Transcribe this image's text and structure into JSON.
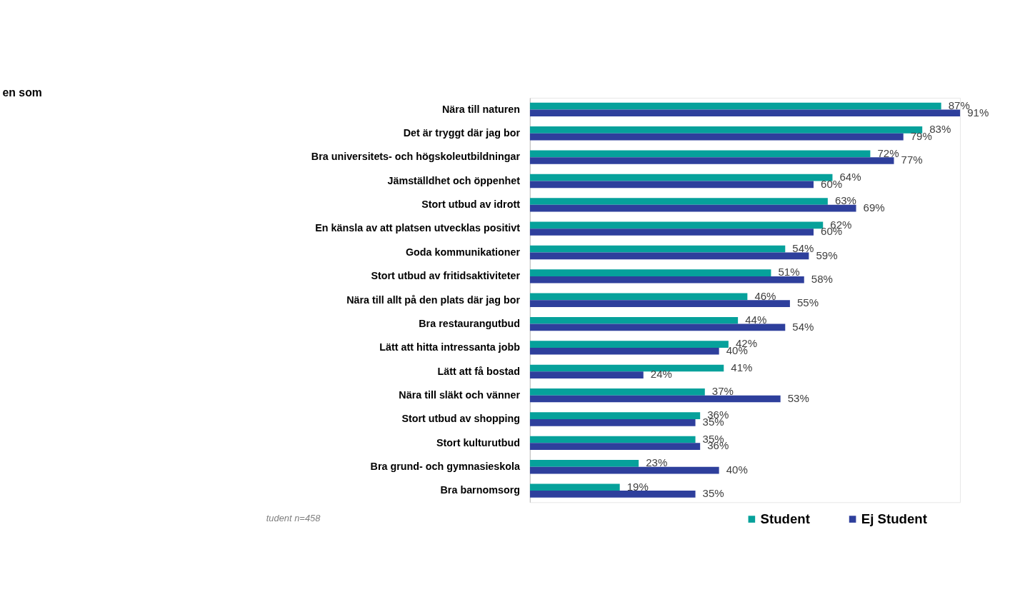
{
  "chart_data": {
    "type": "bar",
    "orientation": "horizontal",
    "title": "en som",
    "categories": [
      "Nära till naturen",
      "Det är tryggt där jag bor",
      "Bra universitets- och högskoleutbildningar",
      "Jämställdhet och öppenhet",
      "Stort utbud av idrott",
      "En känsla av att platsen utvecklas positivt",
      "Goda kommunikationer",
      "Stort utbud av fritidsaktiviteter",
      "Nära till allt på den plats där jag bor",
      "Bra restaurangutbud",
      "Lätt att hitta intressanta jobb",
      "Lätt att få bostad",
      "Nära till släkt och vänner",
      "Stort utbud av shopping",
      "Stort kulturutbud",
      "Bra grund- och gymnasieskola",
      "Bra barnomsorg"
    ],
    "series": [
      {
        "name": "Student",
        "color": "#06a19b",
        "values": [
          87,
          83,
          72,
          64,
          63,
          62,
          54,
          51,
          46,
          44,
          42,
          41,
          37,
          36,
          35,
          23,
          19
        ],
        "value_labels": [
          "87%",
          "83%",
          "72%",
          "64%",
          "63%",
          "62%",
          "54%",
          "51%",
          "46%",
          "44%",
          "42%",
          "41%",
          "37%",
          "36%",
          "35%",
          "23%",
          "19%"
        ]
      },
      {
        "name": "Ej Student",
        "color": "#2e3f9c",
        "values": [
          91,
          79,
          77,
          60,
          69,
          60,
          59,
          58,
          55,
          54,
          40,
          24,
          53,
          35,
          36,
          40,
          35
        ],
        "value_labels": [
          "91%",
          "79%",
          "77%",
          "60%",
          "69%",
          "60%",
          "59%",
          "58%",
          "55%",
          "54%",
          "40%",
          "24%",
          "53%",
          "35%",
          "36%",
          "40%",
          "35%"
        ]
      }
    ],
    "legend": "bottom right",
    "annotations": [
      "tudent n=458"
    ]
  }
}
